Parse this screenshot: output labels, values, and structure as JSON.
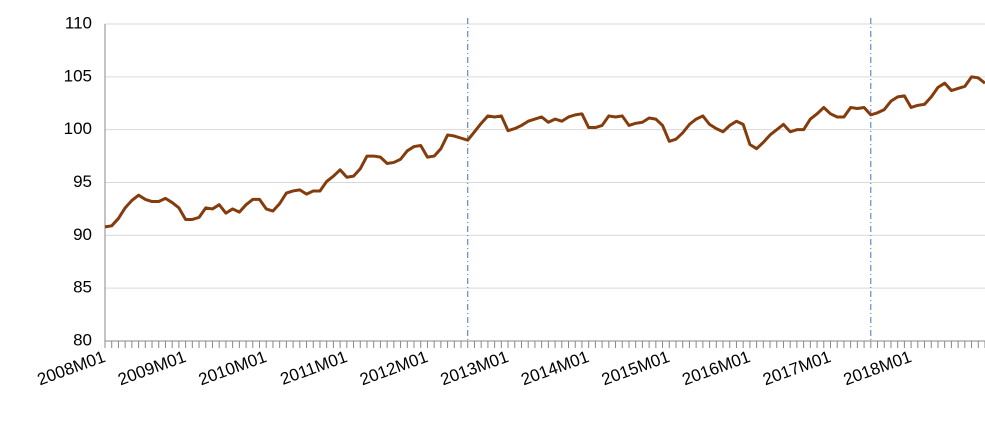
{
  "chart_data": {
    "type": "line",
    "categories": [
      "2008M01",
      null,
      null,
      null,
      null,
      null,
      null,
      null,
      null,
      null,
      null,
      null,
      "2009M01",
      null,
      null,
      null,
      null,
      null,
      null,
      null,
      null,
      null,
      null,
      null,
      "2010M01",
      null,
      null,
      null,
      null,
      null,
      null,
      null,
      null,
      null,
      null,
      null,
      "2011M01",
      null,
      null,
      null,
      null,
      null,
      null,
      null,
      null,
      null,
      null,
      null,
      "2012M01",
      null,
      null,
      null,
      null,
      null,
      null,
      null,
      null,
      null,
      null,
      null,
      "2013M01",
      null,
      null,
      null,
      null,
      null,
      null,
      null,
      null,
      null,
      null,
      null,
      "2014M01",
      null,
      null,
      null,
      null,
      null,
      null,
      null,
      null,
      null,
      null,
      null,
      "2015M01",
      null,
      null,
      null,
      null,
      null,
      null,
      null,
      null,
      null,
      null,
      null,
      "2016M01",
      null,
      null,
      null,
      null,
      null,
      null,
      null,
      null,
      null,
      null,
      null,
      "2017M01",
      null,
      null,
      null,
      null,
      null,
      null,
      null,
      null,
      null,
      null,
      null,
      "2018M01",
      null,
      null,
      null,
      null,
      null,
      null,
      null,
      null,
      null,
      null,
      null
    ],
    "series": [
      {
        "name": null,
        "color": "#843c0c",
        "values": [
          90.8,
          90.9,
          91.6,
          92.6,
          93.3,
          93.8,
          93.4,
          93.2,
          93.2,
          93.5,
          93.1,
          92.6,
          91.5,
          91.5,
          91.7,
          92.6,
          92.5,
          92.9,
          92.1,
          92.5,
          92.2,
          92.9,
          93.4,
          93.4,
          92.5,
          92.3,
          93.0,
          94.0,
          94.2,
          94.3,
          93.9,
          94.2,
          94.2,
          95.1,
          95.6,
          96.2,
          95.5,
          95.6,
          96.3,
          97.5,
          97.5,
          97.4,
          96.8,
          96.9,
          97.2,
          98.0,
          98.4,
          98.5,
          97.4,
          97.5,
          98.2,
          99.5,
          99.4,
          99.2,
          99.0,
          99.8,
          100.6,
          101.3,
          101.2,
          101.3,
          99.9,
          100.1,
          100.4,
          100.8,
          101.0,
          101.2,
          100.7,
          101.0,
          100.8,
          101.2,
          101.4,
          101.5,
          100.2,
          100.2,
          100.4,
          101.3,
          101.2,
          101.3,
          100.4,
          100.6,
          100.7,
          101.1,
          101.0,
          100.4,
          98.9,
          99.1,
          99.7,
          100.5,
          101.0,
          101.3,
          100.5,
          100.1,
          99.8,
          100.4,
          100.8,
          100.5,
          98.6,
          98.2,
          98.8,
          99.5,
          100.0,
          100.5,
          99.8,
          100.0,
          100.0,
          101.0,
          101.5,
          102.1,
          101.5,
          101.2,
          101.2,
          102.1,
          102.0,
          102.1,
          101.4,
          101.6,
          101.9,
          102.7,
          103.1,
          103.2,
          102.1,
          102.3,
          102.4,
          103.1,
          104.0,
          104.4,
          103.7,
          103.9,
          104.1,
          105.0,
          104.9,
          104.4
        ]
      }
    ],
    "vline_indices": [
      54,
      114
    ],
    "ylim": [
      80,
      110
    ],
    "yticks": [
      80,
      85,
      90,
      95,
      100,
      105,
      110
    ],
    "grid": true
  }
}
